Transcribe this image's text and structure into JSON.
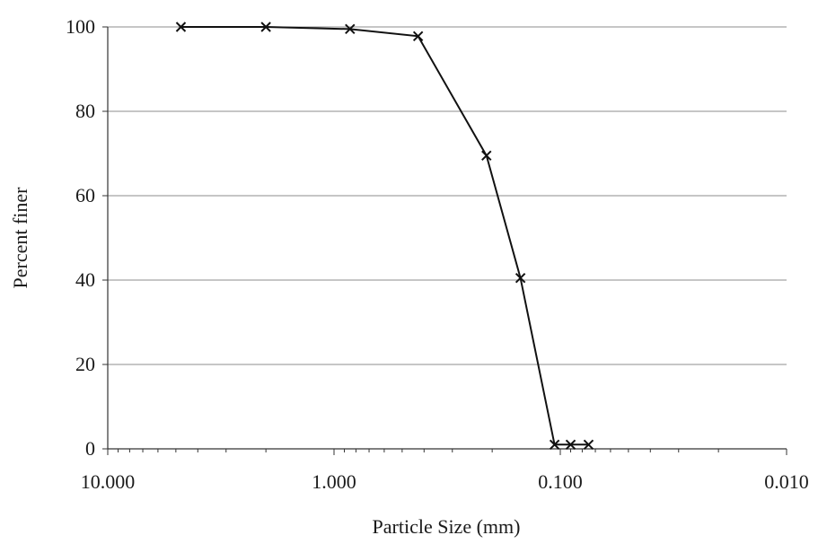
{
  "chart_data": {
    "type": "line",
    "title": "",
    "xlabel": "Particle Size (mm)",
    "ylabel": "Percent finer",
    "x_scale": "log",
    "x_reversed": true,
    "xlim": [
      10,
      0.01
    ],
    "ylim": [
      0,
      100
    ],
    "x_ticks": [
      {
        "value": 10,
        "label": "10.000"
      },
      {
        "value": 1,
        "label": "1.000"
      },
      {
        "value": 0.1,
        "label": "0.100"
      },
      {
        "value": 0.01,
        "label": "0.010"
      }
    ],
    "y_ticks": [
      {
        "value": 0,
        "label": "0"
      },
      {
        "value": 20,
        "label": "20"
      },
      {
        "value": 40,
        "label": "40"
      },
      {
        "value": 60,
        "label": "60"
      },
      {
        "value": 80,
        "label": "80"
      },
      {
        "value": 100,
        "label": "100"
      }
    ],
    "grid": "horizontal",
    "marker": "x",
    "line_color": "#111111",
    "series": [
      {
        "x": [
          4.75,
          2.0,
          0.85,
          0.425,
          0.212,
          0.15,
          0.106,
          0.09,
          0.075
        ],
        "y": [
          100,
          100,
          99.5,
          97.8,
          69.5,
          40.5,
          1,
          1,
          1
        ]
      }
    ]
  }
}
